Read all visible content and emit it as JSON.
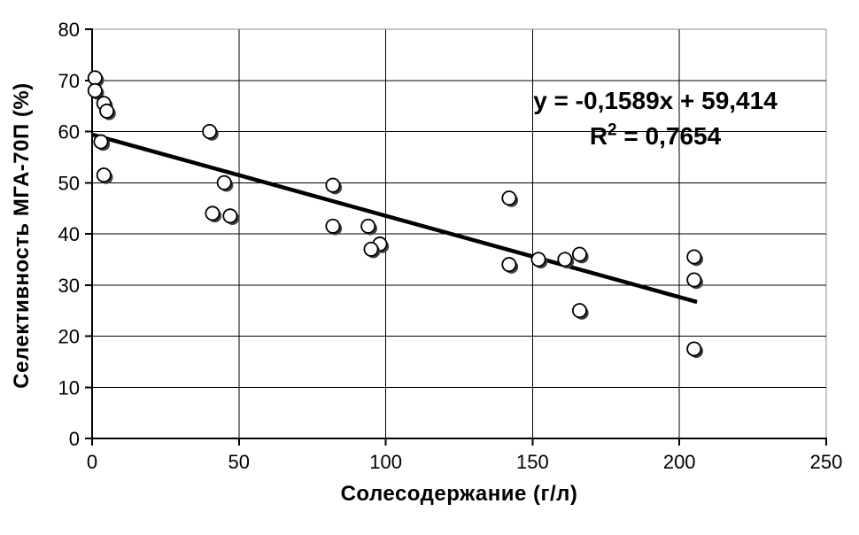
{
  "chart_data": {
    "type": "scatter",
    "title": "",
    "xlabel": "Солесодержание (г/л)",
    "ylabel": "Селективность МГА-70П (%)",
    "xlim": [
      0,
      250
    ],
    "ylim": [
      0,
      80
    ],
    "x_ticks": [
      0,
      50,
      100,
      150,
      200,
      250
    ],
    "y_ticks": [
      0,
      10,
      20,
      30,
      40,
      50,
      60,
      70,
      80
    ],
    "grid": true,
    "legend_position": "none",
    "marker_style": "open-circle-with-shadow",
    "points": [
      [
        1,
        70.5
      ],
      [
        1,
        68
      ],
      [
        4,
        65.5
      ],
      [
        5,
        64
      ],
      [
        3,
        58
      ],
      [
        4,
        51.5
      ],
      [
        40,
        60
      ],
      [
        45,
        50
      ],
      [
        41,
        44
      ],
      [
        47,
        43.5
      ],
      [
        82,
        49.5
      ],
      [
        82,
        41.5
      ],
      [
        94,
        41.5
      ],
      [
        98,
        38
      ],
      [
        95,
        37
      ],
      [
        142,
        47
      ],
      [
        142,
        34
      ],
      [
        152,
        35
      ],
      [
        161,
        35
      ],
      [
        166,
        36
      ],
      [
        166,
        25
      ],
      [
        205,
        35.5
      ],
      [
        205,
        31
      ],
      [
        205,
        17.5
      ]
    ],
    "trendline": {
      "slope": -0.1589,
      "intercept": 59.414,
      "x_range": [
        0,
        206
      ],
      "label_line1": "y = -0,1589x + 59,414",
      "label_line2": {
        "base": "R",
        "sup": "2",
        "rest": " = 0,7654"
      }
    },
    "colors": {
      "background": "#ffffff",
      "marker_fill": "#ffffff",
      "marker_stroke": "#000000",
      "marker_shadow": "#3f3f3f",
      "trend_line": "#000000",
      "gridline": "#000000",
      "plot_border": "#8c8c8c",
      "axis": "#000000",
      "text": "#000000"
    }
  }
}
